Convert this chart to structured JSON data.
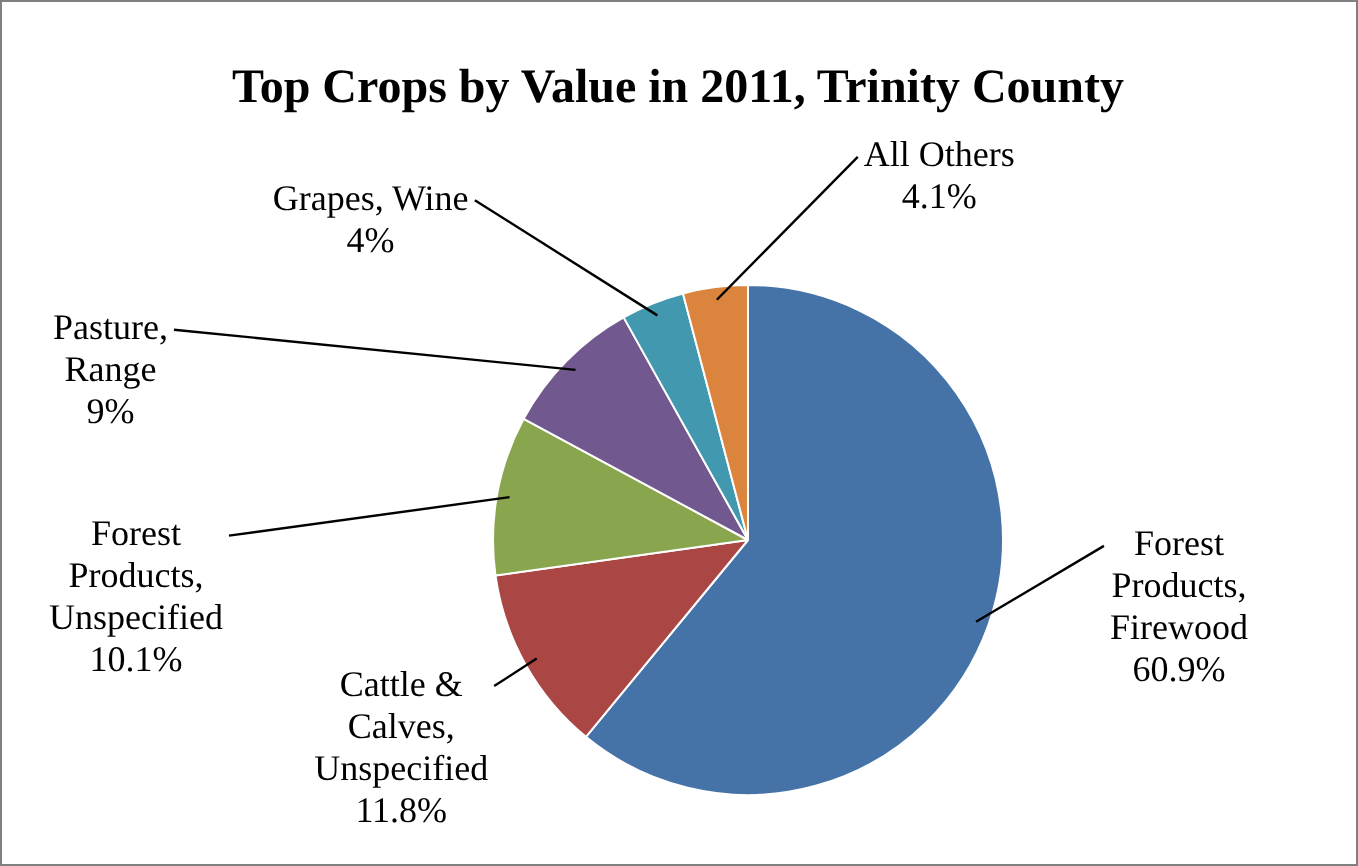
{
  "chart_data": {
    "type": "pie",
    "title": "Top Crops by Value in 2011, Trinity County",
    "categories": [
      "Forest Products, Firewood",
      "Cattle & Calves, Unspecified",
      "Forest Products, Unspecified",
      "Pasture, Range",
      "Grapes, Wine",
      "All Others"
    ],
    "values": [
      60.9,
      11.8,
      10.1,
      9,
      4,
      4.1
    ],
    "value_labels": [
      "60.9%",
      "11.8%",
      "10.1%",
      "9%",
      "4%",
      "4.1%"
    ],
    "colors": [
      "#4572a7",
      "#aa4643",
      "#89a54e",
      "#71588f",
      "#4198af",
      "#db843d"
    ],
    "legend": false
  }
}
